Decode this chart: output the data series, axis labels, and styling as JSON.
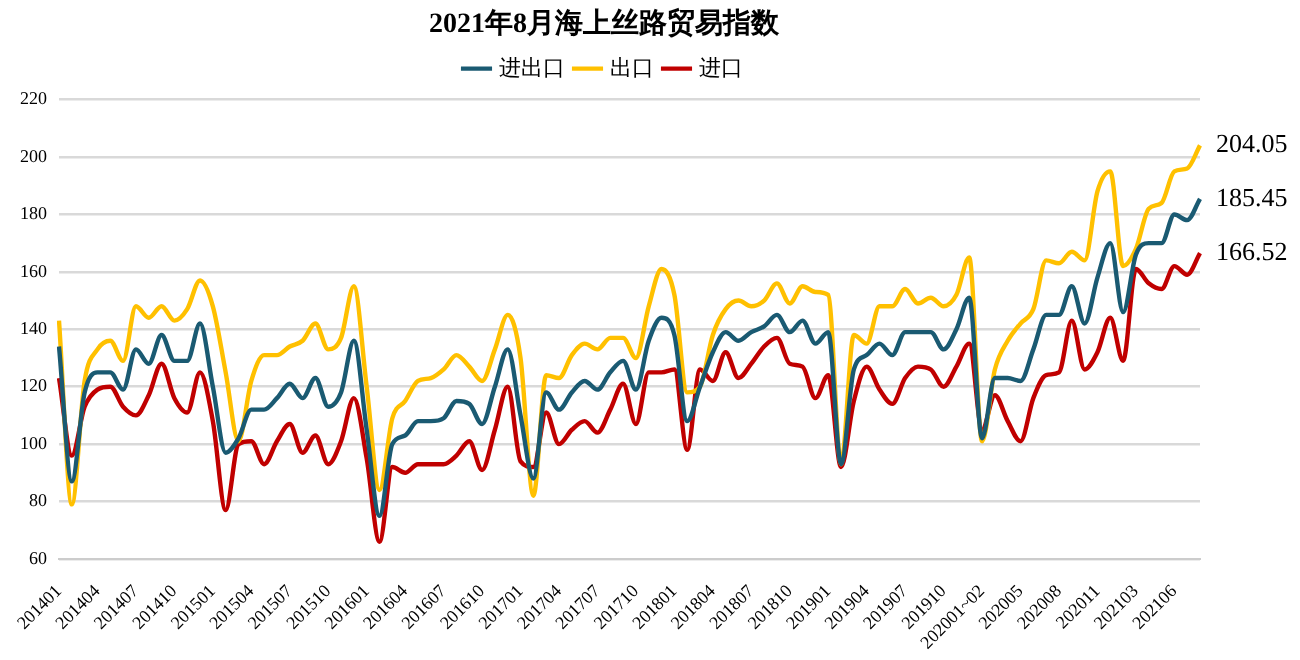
{
  "chart_data": {
    "type": "line",
    "title": "2021年8月海上丝路贸易指数",
    "categories": [
      "201401",
      null,
      null,
      "201404",
      null,
      null,
      "201407",
      null,
      null,
      "201410",
      null,
      null,
      "201501",
      null,
      null,
      "201504",
      null,
      null,
      "201507",
      null,
      null,
      "201510",
      null,
      null,
      "201601",
      null,
      null,
      "201604",
      null,
      null,
      "201607",
      null,
      null,
      "201610",
      null,
      null,
      "201701",
      null,
      null,
      "201704",
      null,
      null,
      "201707",
      null,
      null,
      "201710",
      null,
      null,
      "201801",
      null,
      null,
      "201804",
      null,
      null,
      "201807",
      null,
      null,
      "201810",
      null,
      null,
      "201901",
      null,
      null,
      "201904",
      null,
      null,
      "201907",
      null,
      null,
      "201910",
      null,
      null,
      "202001~02",
      null,
      null,
      "202005",
      null,
      null,
      "202008",
      null,
      null,
      "202011",
      null,
      null,
      "202103",
      null,
      null,
      "202106",
      null,
      null
    ],
    "series": [
      {
        "name": "进出口",
        "color": "#1a5a72",
        "values": [
          134,
          87,
          118,
          125,
          125,
          119,
          133,
          128,
          138,
          129,
          129,
          142,
          120,
          97,
          102,
          112,
          112,
          116,
          121,
          116,
          123,
          113,
          118,
          136,
          105,
          75,
          100,
          103,
          108,
          108,
          109,
          115,
          114,
          107,
          120,
          133,
          110,
          88,
          118,
          112,
          118,
          122,
          119,
          125,
          129,
          119,
          136,
          144,
          138,
          108,
          120,
          132,
          139,
          136,
          139,
          141,
          145,
          139,
          143,
          135,
          139,
          93,
          126,
          131,
          135,
          131,
          139,
          139,
          139,
          133,
          140,
          151,
          102,
          123,
          123,
          122,
          133,
          145,
          145,
          155,
          142,
          158,
          170,
          146,
          166,
          170,
          170,
          180,
          178,
          185.45
        ],
        "value_labels": [
          null,
          null,
          null,
          null,
          null,
          null,
          null,
          null,
          null,
          null,
          null,
          null,
          null,
          null,
          null,
          null,
          null,
          null,
          null,
          null,
          null,
          null,
          null,
          null,
          null,
          null,
          null,
          null,
          null,
          null,
          null,
          null,
          null,
          null,
          null,
          null,
          null,
          null,
          null,
          null,
          null,
          null,
          null,
          null,
          null,
          null,
          null,
          null,
          null,
          null,
          null,
          null,
          null,
          null,
          null,
          null,
          null,
          null,
          null,
          null,
          null,
          null,
          null,
          null,
          null,
          null,
          null,
          null,
          null,
          null,
          null,
          null,
          null,
          null,
          null,
          null,
          null,
          null,
          null,
          null,
          null,
          null,
          null,
          null,
          null,
          null,
          null,
          null,
          null,
          "185.45"
        ]
      },
      {
        "name": "出口",
        "color": "#ffc000",
        "values": [
          143,
          79,
          122,
          133,
          136,
          129,
          148,
          144,
          148,
          143,
          147,
          157,
          148,
          125,
          101,
          122,
          131,
          131,
          134,
          136,
          142,
          133,
          137,
          155,
          120,
          84,
          109,
          115,
          122,
          123,
          126,
          131,
          127,
          122,
          133,
          145,
          130,
          82,
          124,
          123,
          131,
          135,
          133,
          137,
          137,
          130,
          148,
          161,
          152,
          118,
          120,
          138,
          147,
          150,
          148,
          150,
          156,
          149,
          155,
          153,
          152,
          93,
          138,
          135,
          148,
          148,
          154,
          149,
          151,
          148,
          152,
          165,
          101,
          126,
          136,
          142,
          147,
          164,
          163,
          167,
          164,
          188,
          195,
          162,
          168,
          182,
          184,
          195,
          196,
          204.05
        ],
        "value_labels": [
          null,
          null,
          null,
          null,
          null,
          null,
          null,
          null,
          null,
          null,
          null,
          null,
          null,
          null,
          null,
          null,
          null,
          null,
          null,
          null,
          null,
          null,
          null,
          null,
          null,
          null,
          null,
          null,
          null,
          null,
          null,
          null,
          null,
          null,
          null,
          null,
          null,
          null,
          null,
          null,
          null,
          null,
          null,
          null,
          null,
          null,
          null,
          null,
          null,
          null,
          null,
          null,
          null,
          null,
          null,
          null,
          null,
          null,
          null,
          null,
          null,
          null,
          null,
          null,
          null,
          null,
          null,
          null,
          null,
          null,
          null,
          null,
          null,
          null,
          null,
          null,
          null,
          null,
          null,
          null,
          null,
          null,
          null,
          null,
          null,
          null,
          null,
          null,
          null,
          "204.05"
        ]
      },
      {
        "name": "进口",
        "color": "#c00000",
        "values": [
          123,
          96,
          113,
          119,
          120,
          113,
          110,
          117,
          128,
          116,
          111,
          125,
          108,
          77,
          100,
          101,
          93,
          101,
          107,
          97,
          103,
          93,
          101,
          116,
          95,
          66,
          92,
          90,
          93,
          93,
          93,
          96,
          101,
          91,
          105,
          120,
          94,
          92,
          111,
          100,
          105,
          108,
          104,
          112,
          121,
          107,
          125,
          125,
          126,
          98,
          126,
          122,
          132,
          123,
          128,
          134,
          137,
          128,
          127,
          116,
          124,
          92,
          115,
          127,
          119,
          114,
          123,
          127,
          126,
          120,
          127,
          135,
          105,
          117,
          108,
          101,
          116,
          124,
          125,
          143,
          126,
          132,
          144,
          129,
          161,
          156,
          154,
          162,
          159,
          166.52
        ],
        "value_labels": [
          null,
          null,
          null,
          null,
          null,
          null,
          null,
          null,
          null,
          null,
          null,
          null,
          null,
          null,
          null,
          null,
          null,
          null,
          null,
          null,
          null,
          null,
          null,
          null,
          null,
          null,
          null,
          null,
          null,
          null,
          null,
          null,
          null,
          null,
          null,
          null,
          null,
          null,
          null,
          null,
          null,
          null,
          null,
          null,
          null,
          null,
          null,
          null,
          null,
          null,
          null,
          null,
          null,
          null,
          null,
          null,
          null,
          null,
          null,
          null,
          null,
          null,
          null,
          null,
          null,
          null,
          null,
          null,
          null,
          null,
          null,
          null,
          null,
          null,
          null,
          null,
          null,
          null,
          null,
          null,
          null,
          null,
          null,
          null,
          null,
          null,
          null,
          null,
          null,
          "166.52"
        ]
      }
    ],
    "ylim": [
      60,
      220
    ],
    "yticks": [
      60,
      80,
      100,
      120,
      140,
      160,
      180,
      200,
      220
    ],
    "grid": "y",
    "legend": "top",
    "marker": "none",
    "line_style": "solid"
  }
}
